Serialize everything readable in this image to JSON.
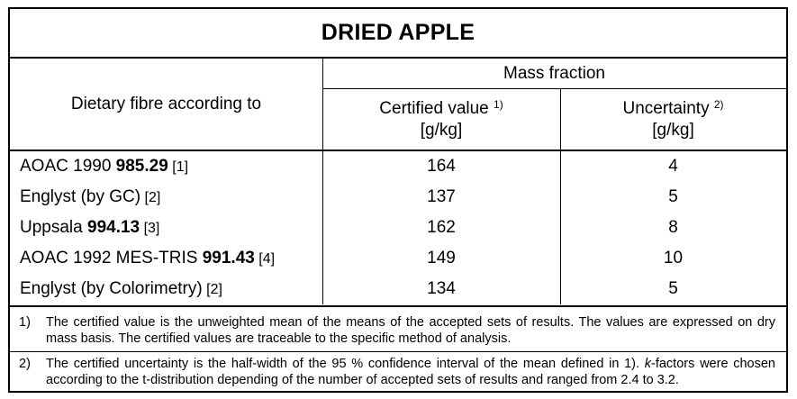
{
  "title": "DRIED APPLE",
  "header": {
    "col1": "Dietary fibre according to",
    "group": "Mass fraction",
    "certified_label": "Certified value",
    "certified_sup": "1)",
    "certified_unit": "[g/kg]",
    "uncertainty_label": "Uncertainty",
    "uncertainty_sup": "2)",
    "uncertainty_unit": "[g/kg]"
  },
  "rows": [
    {
      "pre": "AOAC 1990 ",
      "bold": "985.29",
      "ref": " [1]",
      "value": "164",
      "uncertainty": "4"
    },
    {
      "pre": "Englyst (by GC)",
      "bold": "",
      "ref": " [2]",
      "value": "137",
      "uncertainty": "5"
    },
    {
      "pre": "Uppsala ",
      "bold": "994.13",
      "ref": " [3]",
      "value": "162",
      "uncertainty": "8"
    },
    {
      "pre": "AOAC 1992 MES-TRIS ",
      "bold": "991.43",
      "ref": " [4]",
      "value": "149",
      "uncertainty": "10"
    },
    {
      "pre": "Englyst (by Colorimetry)",
      "bold": "",
      "ref": " [2]",
      "value": "134",
      "uncertainty": "5"
    }
  ],
  "notes": [
    {
      "num": "1)",
      "text": "The certified value is the unweighted mean of the means of the accepted sets of results. The values are expressed on dry mass basis. The certified values are traceable to the specific method of analysis."
    },
    {
      "num": "2)",
      "text_pre": "The certified uncertainty is the half-width of the 95 % confidence interval of the mean defined in 1).  ",
      "text_italic": "k",
      "text_post": "-factors were chosen according to the t-distribution depending of the number of accepted sets of results and ranged from 2.4 to 3.2."
    }
  ]
}
